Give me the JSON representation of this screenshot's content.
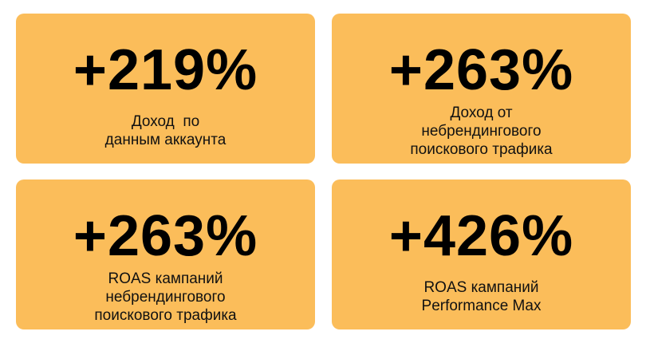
{
  "cards": [
    {
      "value": "+219%",
      "label": [
        "Доход  по",
        "данным аккаунта"
      ]
    },
    {
      "value": "+263%",
      "label": [
        "Доход от",
        "небрендингового",
        "поискового трафика"
      ]
    },
    {
      "value": "+263%",
      "label": [
        "ROAS кампаний",
        "небрендингового",
        "поискового трафика"
      ]
    },
    {
      "value": "+426%",
      "label": [
        "ROAS кампаний",
        "Performance Max"
      ]
    }
  ]
}
